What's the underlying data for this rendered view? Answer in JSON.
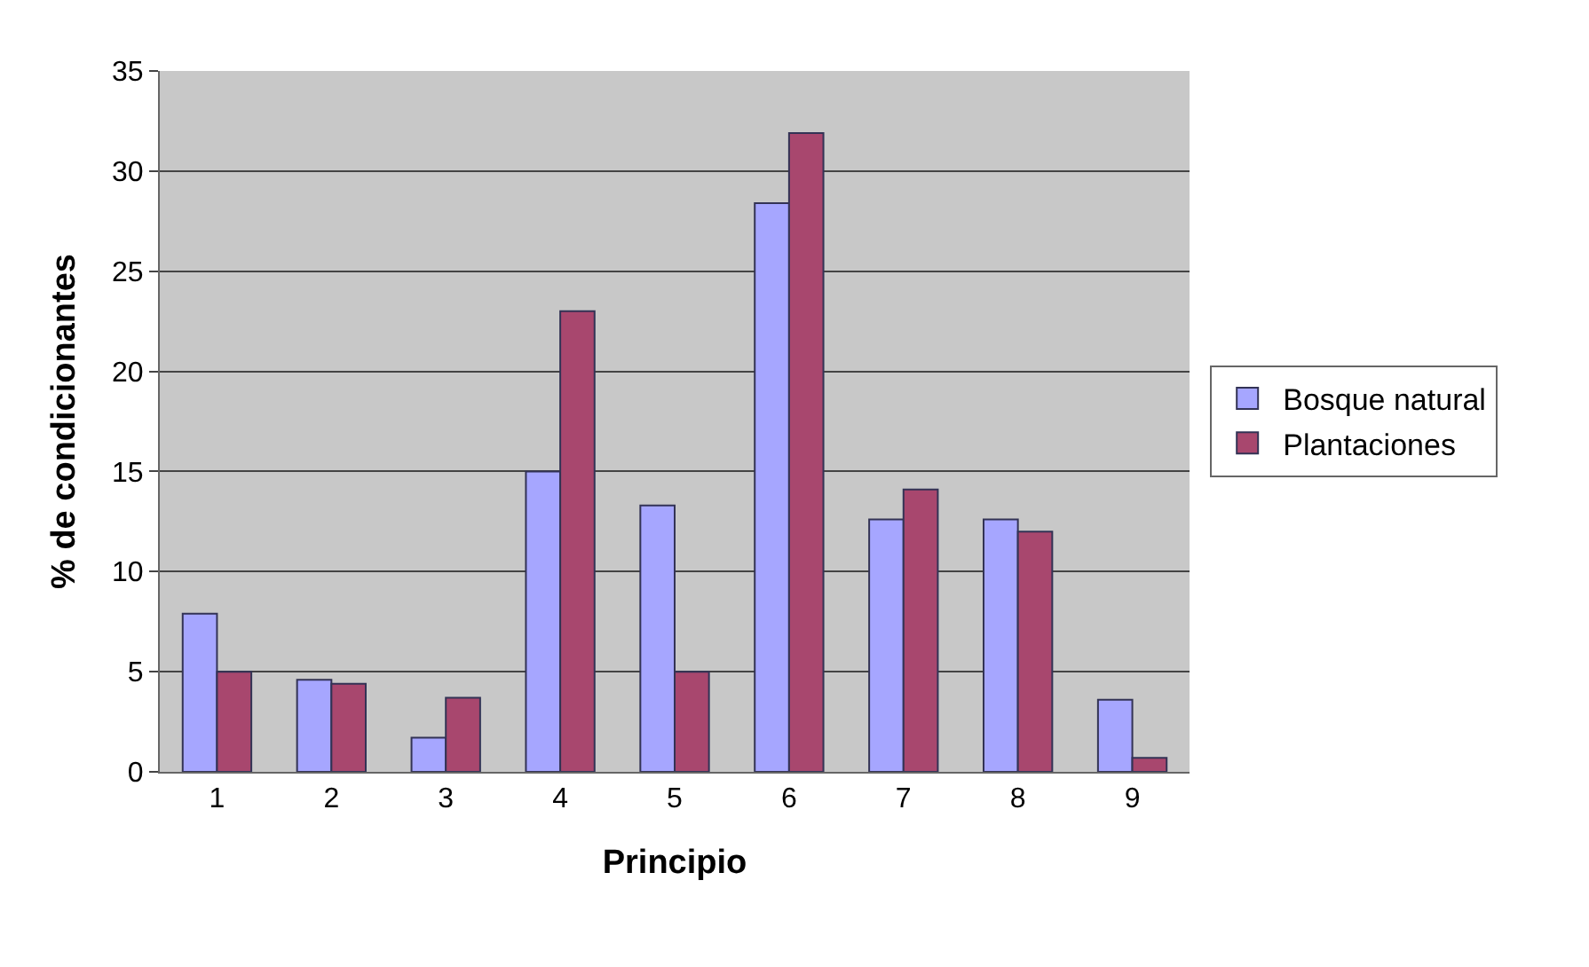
{
  "chart_data": {
    "type": "bar",
    "xlabel": "Principio",
    "ylabel": "% de condicionantes",
    "categories": [
      "1",
      "2",
      "3",
      "4",
      "5",
      "6",
      "7",
      "8",
      "9"
    ],
    "series": [
      {
        "name": "Bosque natural",
        "color": "#a6a6ff",
        "values": [
          7.9,
          4.6,
          1.7,
          15.0,
          13.3,
          28.4,
          12.6,
          12.6,
          3.6
        ]
      },
      {
        "name": "Plantaciones",
        "color": "#a8476e",
        "values": [
          5.0,
          4.4,
          3.7,
          23.0,
          5.0,
          31.9,
          14.1,
          12.0,
          0.7
        ]
      }
    ],
    "ylim": [
      0,
      35
    ],
    "yticks": [
      0,
      5,
      10,
      15,
      20,
      25,
      30,
      35
    ],
    "grid": "y",
    "legend": "right"
  }
}
